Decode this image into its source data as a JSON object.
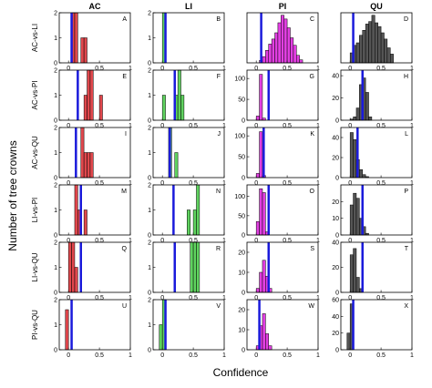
{
  "chart_data": {
    "type": "bar",
    "title": "",
    "xlabel": "Confidence",
    "ylabel": "Number of tree crowns",
    "xlim": [
      0,
      1
    ],
    "x_ticks": [
      "0",
      "0.5",
      "1"
    ],
    "bin_width": 0.05,
    "columns": [
      "AC",
      "LI",
      "PI",
      "QU"
    ],
    "rows": [
      "AC-vs-LI",
      "AC-vs-PI",
      "AC-vs-QU",
      "LI-vs-PI",
      "LI-vs-QU",
      "PI-vs-QU"
    ],
    "colors": {
      "AC": "#e0474c",
      "LI": "#5fd35f",
      "PI": "#e23fe2",
      "QU": "#555555",
      "threshold": "#1a1adb"
    },
    "grid": false,
    "legend": "none",
    "panels": [
      {
        "letter": "A",
        "row": 0,
        "col": 0,
        "ylim": [
          0,
          2
        ],
        "yticks": [
          "0",
          "1",
          "2"
        ],
        "threshold": 0.05,
        "x": [
          0.075,
          0.125,
          0.225,
          0.275
        ],
        "values": [
          2,
          2,
          1,
          1
        ]
      },
      {
        "letter": "B",
        "row": 0,
        "col": 1,
        "ylim": [
          0,
          2
        ],
        "yticks": [
          "0",
          "1",
          "2"
        ],
        "threshold": 0.05,
        "x": [
          0.025
        ],
        "values": [
          2
        ]
      },
      {
        "letter": "C",
        "row": 0,
        "col": 2,
        "ylim": [
          0,
          2
        ],
        "yticks": [],
        "threshold": 0.08,
        "x": [
          0.075,
          0.125,
          0.175,
          0.225,
          0.275,
          0.325,
          0.375,
          0.425,
          0.475,
          0.525,
          0.575,
          0.625,
          0.675,
          0.725
        ],
        "values": [
          0.1,
          0.25,
          0.5,
          0.75,
          0.95,
          1.2,
          1.6,
          1.9,
          1.75,
          1.4,
          1.0,
          0.7,
          0.3,
          0.12
        ]
      },
      {
        "letter": "D",
        "row": 0,
        "col": 3,
        "ylim": [
          0,
          2
        ],
        "yticks": [],
        "threshold": 0.05,
        "x": [
          0.025,
          0.075,
          0.125,
          0.175,
          0.225,
          0.275,
          0.325,
          0.375,
          0.425,
          0.475,
          0.525,
          0.575,
          0.625,
          0.675
        ],
        "values": [
          0.4,
          0.7,
          0.8,
          1.1,
          1.3,
          1.55,
          1.65,
          1.9,
          1.6,
          1.45,
          1.2,
          0.95,
          0.6,
          0.35
        ]
      },
      {
        "letter": "E",
        "row": 1,
        "col": 0,
        "ylim": [
          0,
          2
        ],
        "yticks": [
          "0",
          "1",
          "2"
        ],
        "threshold": 0.15,
        "x": [
          0.275,
          0.325,
          0.375,
          0.525
        ],
        "values": [
          1,
          2,
          2,
          1
        ]
      },
      {
        "letter": "F",
        "row": 1,
        "col": 1,
        "ylim": [
          0,
          2
        ],
        "yticks": [
          "0",
          "1",
          "2"
        ],
        "threshold": 0.2,
        "x": [
          0.025,
          0.225,
          0.275,
          0.325
        ],
        "values": [
          1,
          1,
          2,
          1
        ]
      },
      {
        "letter": "G",
        "row": 1,
        "col": 2,
        "ylim": [
          0,
          120
        ],
        "yticks": [
          "0",
          "50",
          "100"
        ],
        "threshold": 0.2,
        "x": [
          0.025,
          0.075,
          0.125
        ],
        "values": [
          10,
          110,
          5
        ]
      },
      {
        "letter": "H",
        "row": 1,
        "col": 3,
        "ylim": [
          0,
          45
        ],
        "yticks": [
          "0",
          "20",
          "40"
        ],
        "threshold": 0.2,
        "x": [
          0.025,
          0.075,
          0.125,
          0.175,
          0.225,
          0.275,
          0.325
        ],
        "values": [
          1,
          3,
          11,
          32,
          38,
          25,
          3
        ]
      },
      {
        "letter": "I",
        "row": 2,
        "col": 0,
        "ylim": [
          0,
          2
        ],
        "yticks": [
          "0",
          "1",
          "2"
        ],
        "threshold": 0.12,
        "x": [
          0.225,
          0.275,
          0.325,
          0.375
        ],
        "values": [
          2,
          1,
          1,
          1
        ]
      },
      {
        "letter": "J",
        "row": 2,
        "col": 1,
        "ylim": [
          0,
          2
        ],
        "yticks": [
          "0",
          "1",
          "2"
        ],
        "threshold": 0.12,
        "x": [
          0.125,
          0.225
        ],
        "values": [
          2,
          1
        ]
      },
      {
        "letter": "K",
        "row": 2,
        "col": 2,
        "ylim": [
          0,
          120
        ],
        "yticks": [
          "0",
          "50",
          "100"
        ],
        "threshold": 0.12,
        "x": [
          0.025,
          0.075,
          0.125
        ],
        "values": [
          10,
          110,
          5
        ]
      },
      {
        "letter": "L",
        "row": 2,
        "col": 3,
        "ylim": [
          0,
          50
        ],
        "yticks": [
          "0",
          "20",
          "40"
        ],
        "threshold": 0.12,
        "x": [
          0.025,
          0.075,
          0.125,
          0.175,
          0.225,
          0.275
        ],
        "values": [
          45,
          38,
          18,
          8,
          3,
          1
        ]
      },
      {
        "letter": "M",
        "row": 3,
        "col": 0,
        "ylim": [
          0,
          2
        ],
        "yticks": [
          "0",
          "1",
          "2"
        ],
        "threshold": 0.2,
        "x": [
          0.125,
          0.175,
          0.275
        ],
        "values": [
          2,
          1,
          1
        ]
      },
      {
        "letter": "N",
        "row": 3,
        "col": 1,
        "ylim": [
          0,
          2
        ],
        "yticks": [
          "0",
          "1",
          "2"
        ],
        "threshold": 0.18,
        "x": [
          0.425,
          0.525,
          0.575
        ],
        "values": [
          1,
          1,
          2
        ]
      },
      {
        "letter": "O",
        "row": 3,
        "col": 2,
        "ylim": [
          0,
          130
        ],
        "yticks": [
          "0",
          "50",
          "100"
        ],
        "threshold": 0.2,
        "x": [
          0.025,
          0.075,
          0.125,
          0.175
        ],
        "values": [
          35,
          120,
          110,
          8
        ]
      },
      {
        "letter": "P",
        "row": 3,
        "col": 3,
        "ylim": [
          0,
          30
        ],
        "yticks": [
          "0",
          "10",
          "20"
        ],
        "threshold": 0.2,
        "x": [
          0.025,
          0.075,
          0.125,
          0.175,
          0.225,
          0.275
        ],
        "values": [
          18,
          25,
          22,
          10,
          5,
          1
        ]
      },
      {
        "letter": "Q",
        "row": 4,
        "col": 0,
        "ylim": [
          0,
          2
        ],
        "yticks": [
          "0",
          "1",
          "2"
        ],
        "threshold": 0.2,
        "x": [
          0.025,
          0.075,
          0.125
        ],
        "values": [
          2,
          2,
          1
        ]
      },
      {
        "letter": "R",
        "row": 4,
        "col": 1,
        "ylim": [
          0,
          2
        ],
        "yticks": [
          "0",
          "1",
          "2"
        ],
        "threshold": 0.2,
        "x": [
          0.475,
          0.525,
          0.575
        ],
        "values": [
          2,
          2,
          2
        ]
      },
      {
        "letter": "S",
        "row": 4,
        "col": 2,
        "ylim": [
          0,
          25
        ],
        "yticks": [
          "0",
          "10",
          "20"
        ],
        "threshold": 0.2,
        "x": [
          0.025,
          0.075,
          0.125,
          0.175,
          0.225
        ],
        "values": [
          2,
          10,
          16,
          8,
          2
        ]
      },
      {
        "letter": "T",
        "row": 4,
        "col": 3,
        "ylim": [
          0,
          40
        ],
        "yticks": [
          "0",
          "20",
          "40"
        ],
        "threshold": 0.2,
        "x": [
          0.025,
          0.075,
          0.125,
          0.175
        ],
        "values": [
          30,
          35,
          12,
          3
        ]
      },
      {
        "letter": "U",
        "row": 5,
        "col": 0,
        "ylim": [
          0,
          2
        ],
        "yticks": [
          "0",
          "1",
          "2"
        ],
        "threshold": 0.05,
        "x": [
          -0.025
        ],
        "values": [
          1.6
        ]
      },
      {
        "letter": "V",
        "row": 5,
        "col": 1,
        "ylim": [
          0,
          2
        ],
        "yticks": [
          "0",
          "1",
          "2"
        ],
        "threshold": 0.05,
        "x": [
          -0.025,
          0.025
        ],
        "values": [
          1,
          2
        ]
      },
      {
        "letter": "W",
        "row": 5,
        "col": 2,
        "ylim": [
          0,
          25
        ],
        "yticks": [
          "0",
          "10",
          "20"
        ],
        "threshold": 0.05,
        "x": [
          0.025,
          0.075,
          0.125,
          0.175,
          0.225
        ],
        "values": [
          2,
          12,
          18,
          8,
          2
        ]
      },
      {
        "letter": "X",
        "row": 5,
        "col": 3,
        "ylim": [
          0,
          60
        ],
        "yticks": [
          "0",
          "20",
          "40",
          "60"
        ],
        "threshold": 0.05,
        "x": [
          -0.025,
          0.025
        ],
        "values": [
          20,
          55
        ]
      }
    ]
  }
}
